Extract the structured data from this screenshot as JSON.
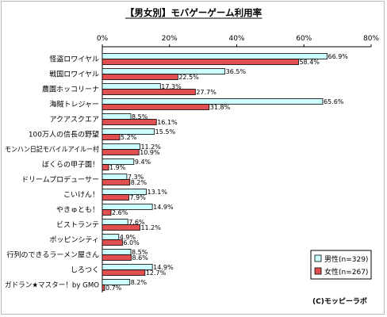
{
  "chart_data": {
    "type": "bar",
    "orientation": "horizontal",
    "title": "【男女別】モバゲーゲーム利用率",
    "credit": "(C)モッピーラボ",
    "xlim": [
      0,
      80
    ],
    "xticks": [
      "0%",
      "20%",
      "40%",
      "60%",
      "80%"
    ],
    "tick_values": [
      0,
      20,
      40,
      60,
      80
    ],
    "grid": false,
    "legend_position": "bottom-right",
    "categories": [
      "怪盗ロワイヤル",
      "戦国ロワイヤル",
      "農園ホッコリーナ",
      "海賊トレジャー",
      "アクアスクエア",
      "100万人の信長の野望",
      "モンハン日記モバイルアイルー村",
      "ぼくらの甲子園！",
      "ドリームプロデューサー",
      "こいけん！",
      "やきゅとも！",
      "ビストランテ",
      "ポッピンシティ",
      "行列のできるラーメン屋さん",
      "しろつく",
      "ガドラン★マスター！by GMO"
    ],
    "series": [
      {
        "name": "男性(n=329)",
        "color": "#ccffff",
        "values": [
          66.9,
          36.5,
          17.3,
          65.6,
          8.5,
          15.5,
          11.2,
          9.4,
          7.3,
          13.1,
          14.9,
          7.6,
          4.9,
          8.5,
          14.9,
          8.2
        ],
        "labels": [
          "66.9%",
          "36.5%",
          "17.3%",
          "65.6%",
          "8.5%",
          "15.5%",
          "11.2%",
          "9.4%",
          "7.3%",
          "13.1%",
          "14.9%",
          "7.6%",
          "4.9%",
          "8.5%",
          "14.9%",
          "8.2%"
        ]
      },
      {
        "name": "女性(n=267)",
        "color": "#e05050",
        "values": [
          58.4,
          22.5,
          27.7,
          31.8,
          16.1,
          5.2,
          10.9,
          1.9,
          8.2,
          7.9,
          2.6,
          11.2,
          6.0,
          8.6,
          12.7,
          0.7
        ],
        "labels": [
          "58.4%",
          "22.5%",
          "27.7%",
          "31.8%",
          "16.1%",
          "5.2%",
          "10.9%",
          "1.9%",
          "8.2%",
          "7.9%",
          "2.6%",
          "11.2%",
          "6.0%",
          "8.6%",
          "12.7%",
          "0.7%"
        ]
      }
    ]
  }
}
